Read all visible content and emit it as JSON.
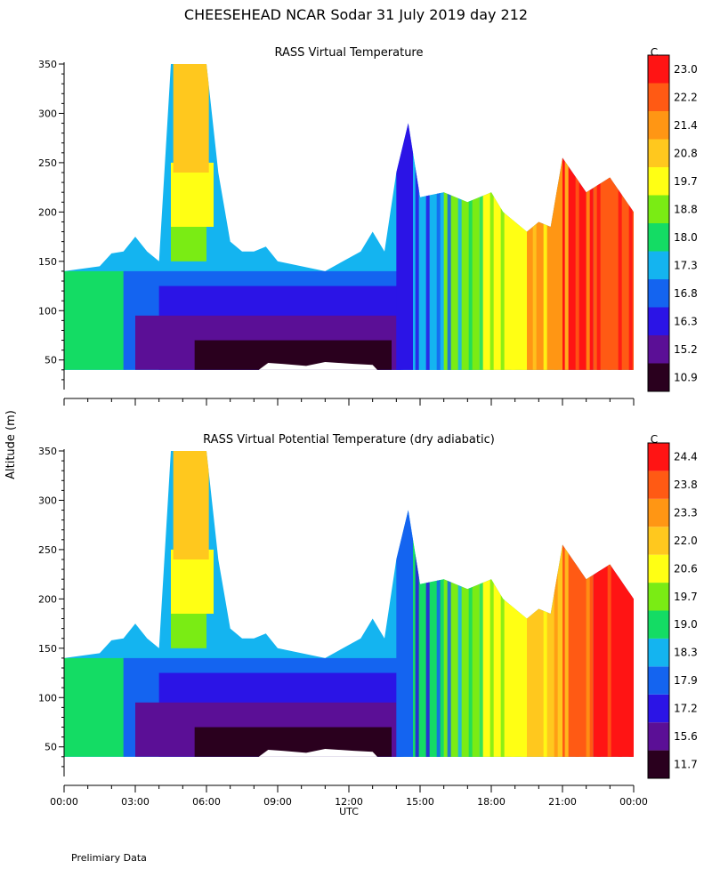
{
  "figure": {
    "title": "CHEESEHEAD  NCAR Sodar  31 July 2019  day 212",
    "ylabel": "Altitude (m)",
    "xlabel": "UTC",
    "footer": "Prelimiary Data",
    "x_ticks": [
      "00:00",
      "03:00",
      "06:00",
      "09:00",
      "12:00",
      "15:00",
      "18:00",
      "21:00",
      "00:00"
    ],
    "y_ticks": [
      50,
      100,
      150,
      200,
      250,
      300,
      350
    ],
    "palette": [
      "#2a001e",
      "#5b0f96",
      "#2b14e6",
      "#1464f0",
      "#14b4f0",
      "#14dc64",
      "#7aec14",
      "#ffff14",
      "#ffc81e",
      "#ff9614",
      "#ff5a14",
      "#ff1414"
    ]
  },
  "chart_data": [
    {
      "type": "heatmap",
      "title": "RASS Virtual Temperature",
      "units": "C",
      "xlabel": "UTC",
      "ylabel": "Altitude (m)",
      "xlim_hours": [
        0,
        24
      ],
      "ylim_m": [
        20,
        350
      ],
      "colorbar_ticks": [
        "10.9",
        "15.2",
        "16.3",
        "16.8",
        "17.3",
        "18.0",
        "18.8",
        "19.7",
        "20.8",
        "21.4",
        "22.2",
        "23.0"
      ],
      "coverage_top_m": [
        [
          0,
          140
        ],
        [
          1.5,
          145
        ],
        [
          2,
          158
        ],
        [
          2.5,
          160
        ],
        [
          3,
          175
        ],
        [
          3.5,
          160
        ],
        [
          4,
          150
        ],
        [
          4.5,
          350
        ],
        [
          6,
          350
        ],
        [
          6.5,
          240
        ],
        [
          7,
          170
        ],
        [
          7.5,
          160
        ],
        [
          8,
          160
        ],
        [
          8.5,
          165
        ],
        [
          9,
          150
        ],
        [
          11,
          140
        ],
        [
          12.5,
          160
        ],
        [
          13,
          180
        ],
        [
          13.5,
          160
        ],
        [
          14,
          240
        ],
        [
          14.5,
          290
        ],
        [
          15,
          215
        ],
        [
          16,
          220
        ],
        [
          17,
          210
        ],
        [
          18,
          220
        ],
        [
          18.5,
          200
        ],
        [
          19,
          190
        ],
        [
          19.5,
          180
        ],
        [
          20,
          190
        ],
        [
          20.5,
          185
        ],
        [
          21,
          255
        ],
        [
          22,
          220
        ],
        [
          23,
          235
        ],
        [
          24,
          200
        ]
      ],
      "bands_hours": [
        [
          0,
          15.0
        ],
        [
          14.0,
          14.7
        ],
        [
          14.7,
          16.0
        ],
        [
          16.0,
          17.5
        ],
        [
          17.5,
          19.5
        ],
        [
          19.5,
          21.0
        ],
        [
          21.0,
          22.3
        ],
        [
          22.3,
          24.0
        ]
      ],
      "band_level_index": [
        5,
        2,
        4,
        6,
        7,
        9,
        11,
        10
      ]
    },
    {
      "type": "heatmap",
      "title": "RASS Virtual Potential Temperature (dry adiabatic)",
      "units": "C",
      "xlabel": "UTC",
      "ylabel": "Altitude (m)",
      "xlim_hours": [
        0,
        24
      ],
      "ylim_m": [
        20,
        350
      ],
      "colorbar_ticks": [
        "11.7",
        "15.6",
        "17.2",
        "17.9",
        "18.3",
        "19.0",
        "19.7",
        "20.6",
        "22.0",
        "23.3",
        "23.8",
        "24.4"
      ],
      "coverage_top_m": [
        [
          0,
          140
        ],
        [
          1.5,
          145
        ],
        [
          2,
          158
        ],
        [
          2.5,
          160
        ],
        [
          3,
          175
        ],
        [
          3.5,
          160
        ],
        [
          4,
          150
        ],
        [
          4.5,
          350
        ],
        [
          6,
          350
        ],
        [
          6.5,
          240
        ],
        [
          7,
          170
        ],
        [
          7.5,
          160
        ],
        [
          8,
          160
        ],
        [
          8.5,
          165
        ],
        [
          9,
          150
        ],
        [
          11,
          140
        ],
        [
          12.5,
          160
        ],
        [
          13,
          180
        ],
        [
          13.5,
          160
        ],
        [
          14,
          240
        ],
        [
          14.5,
          290
        ],
        [
          15,
          215
        ],
        [
          16,
          220
        ],
        [
          17,
          210
        ],
        [
          18,
          220
        ],
        [
          18.5,
          200
        ],
        [
          19,
          190
        ],
        [
          19.5,
          180
        ],
        [
          20,
          190
        ],
        [
          20.5,
          185
        ],
        [
          21,
          255
        ],
        [
          22,
          220
        ],
        [
          23,
          235
        ],
        [
          24,
          200
        ]
      ],
      "bands_hours": [
        [
          0,
          15.0
        ],
        [
          14.0,
          14.7
        ],
        [
          14.7,
          16.0
        ],
        [
          16.0,
          17.5
        ],
        [
          17.5,
          19.5
        ],
        [
          19.5,
          21.0
        ],
        [
          21.0,
          22.3
        ],
        [
          22.3,
          24.0
        ]
      ],
      "band_level_index": [
        5,
        3,
        5,
        6,
        7,
        8,
        10,
        11
      ]
    }
  ]
}
